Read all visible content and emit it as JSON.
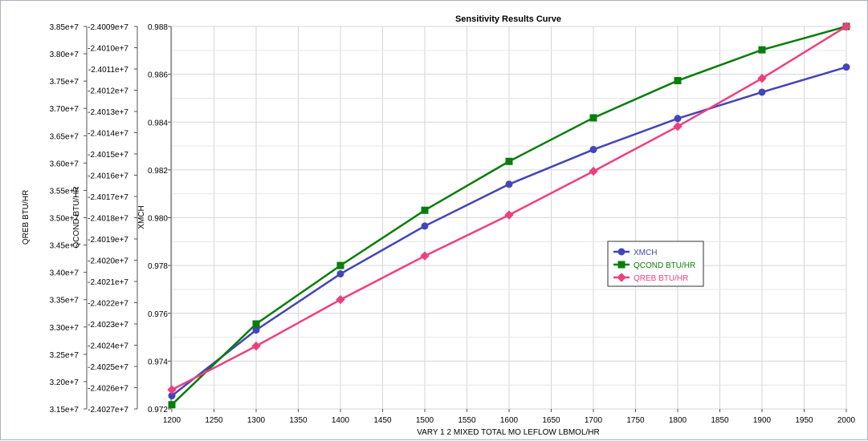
{
  "chart_data": {
    "type": "line",
    "title": "Sensitivity Results Curve",
    "xlabel": "VARY   1 2 MIXED TOTAL MO LEFLOW LBMOL/HR",
    "xlim": [
      1200,
      2000
    ],
    "x_ticks": [
      "1200",
      "1250",
      "1300",
      "1350",
      "1400",
      "1450",
      "1500",
      "1550",
      "1600",
      "1650",
      "1700",
      "1750",
      "1800",
      "1850",
      "1900",
      "1950",
      "2000"
    ],
    "x": [
      1200,
      1300,
      1400,
      1500,
      1600,
      1700,
      1800,
      1900,
      2000
    ],
    "y_axes": [
      {
        "id": "xmch",
        "label": "XMCH",
        "ylim": [
          0.972,
          0.988
        ],
        "ticks": [
          {
            "value": 0.972,
            "label": "0.972"
          },
          {
            "value": 0.974,
            "label": "0.974"
          },
          {
            "value": 0.976,
            "label": "0.976"
          },
          {
            "value": 0.978,
            "label": "0.978"
          },
          {
            "value": 0.98,
            "label": "0.980"
          },
          {
            "value": 0.982,
            "label": "0.982"
          },
          {
            "value": 0.984,
            "label": "0.984"
          },
          {
            "value": 0.986,
            "label": "0.986"
          },
          {
            "value": 0.988,
            "label": "0.988"
          }
        ]
      },
      {
        "id": "qcond",
        "label": "QCOND BTU/HR",
        "ylim": [
          -24027000,
          -24009000
        ],
        "ticks": [
          {
            "value": -24027000,
            "label": "-2.4027e+7"
          },
          {
            "value": -24026000,
            "label": "-2.4026e+7"
          },
          {
            "value": -24025000,
            "label": "-2.4025e+7"
          },
          {
            "value": -24024000,
            "label": "-2.4024e+7"
          },
          {
            "value": -24023000,
            "label": "-2.4023e+7"
          },
          {
            "value": -24022000,
            "label": "-2.4022e+7"
          },
          {
            "value": -24021000,
            "label": "-2.4021e+7"
          },
          {
            "value": -24020000,
            "label": "-2.4020e+7"
          },
          {
            "value": -24019000,
            "label": "-2.4019e+7"
          },
          {
            "value": -24018000,
            "label": "-2.4018e+7"
          },
          {
            "value": -24017000,
            "label": "-2.4017e+7"
          },
          {
            "value": -24016000,
            "label": "-2.4016e+7"
          },
          {
            "value": -24015000,
            "label": "-2.4015e+7"
          },
          {
            "value": -24014000,
            "label": "-2.4014e+7"
          },
          {
            "value": -24013000,
            "label": "-2.4013e+7"
          },
          {
            "value": -24012000,
            "label": "-2.4012e+7"
          },
          {
            "value": -24011000,
            "label": "-2.4011e+7"
          },
          {
            "value": -24010000,
            "label": "-2.4010e+7"
          },
          {
            "value": -24009000,
            "label": "-2.4009e+7"
          }
        ]
      },
      {
        "id": "qreb",
        "label": "QREB BTU/HR",
        "ylim": [
          31500000,
          38500000
        ],
        "ticks": [
          {
            "value": 31500000,
            "label": "3.15e+7"
          },
          {
            "value": 32000000,
            "label": "3.20e+7"
          },
          {
            "value": 32500000,
            "label": "3.25e+7"
          },
          {
            "value": 33000000,
            "label": "3.30e+7"
          },
          {
            "value": 33500000,
            "label": "3.35e+7"
          },
          {
            "value": 34000000,
            "label": "3.40e+7"
          },
          {
            "value": 34500000,
            "label": "3.45e+7"
          },
          {
            "value": 35000000,
            "label": "3.50e+7"
          },
          {
            "value": 35500000,
            "label": "3.55e+7"
          },
          {
            "value": 36000000,
            "label": "3.60e+7"
          },
          {
            "value": 36500000,
            "label": "3.65e+7"
          },
          {
            "value": 37000000,
            "label": "3.70e+7"
          },
          {
            "value": 37500000,
            "label": "3.75e+7"
          },
          {
            "value": 38000000,
            "label": "3.80e+7"
          },
          {
            "value": 38500000,
            "label": "3.85e+7"
          }
        ]
      }
    ],
    "series": [
      {
        "name": "XMCH",
        "axis": "xmch",
        "color": "#4444bb",
        "marker": "circle",
        "values": [
          0.97255,
          0.9753,
          0.97765,
          0.97965,
          0.9814,
          0.98285,
          0.98415,
          0.98525,
          0.9863
        ]
      },
      {
        "name": "QCOND BTU/HR",
        "axis": "qcond",
        "color": "#0a7d0a",
        "marker": "square",
        "values": [
          -24026800,
          -24023000,
          -24020250,
          -24017650,
          -24015350,
          -24013300,
          -24011550,
          -24010100,
          -24009000
        ]
      },
      {
        "name": "QREB BTU/HR",
        "axis": "qreb",
        "color": "#ee4080",
        "marker": "diamond",
        "values": [
          31850000,
          32650000,
          33500000,
          34300000,
          35050000,
          35850000,
          36670000,
          37550000,
          38500000
        ]
      }
    ],
    "grid": true,
    "legend_position": "center-right"
  }
}
